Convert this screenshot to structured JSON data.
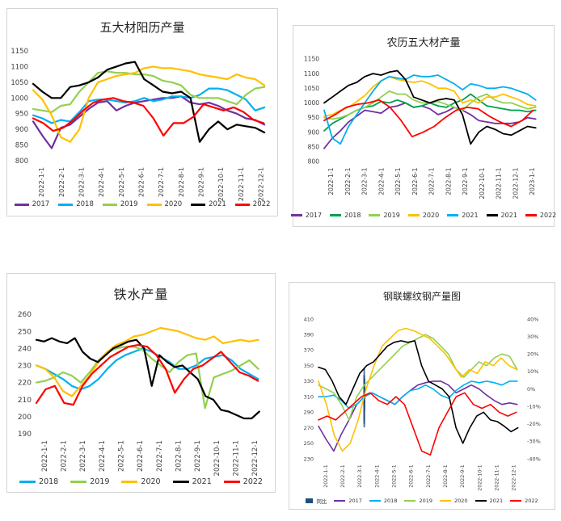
{
  "chart_data": [
    {
      "id": "p1",
      "type": "line",
      "title": "五大材阳历产量",
      "ylim": [
        800,
        1150
      ],
      "yticks": [
        800,
        850,
        900,
        950,
        1000,
        1050,
        1100,
        1150
      ],
      "xticks": [
        "2022-1-1",
        "2022-2-1",
        "2022-3-1",
        "2022-4-1",
        "2022-5-1",
        "2022-6-1",
        "2022-7-1",
        "2022-8-1",
        "2022-9-1",
        "2022-10-1",
        "2022-11-1",
        "2022-12-1"
      ],
      "series": [
        {
          "name": "2017",
          "color": "#7030a0",
          "values": [
            925,
            880,
            840,
            905,
            915,
            940,
            965,
            985,
            990,
            960,
            975,
            985,
            990,
            995,
            1000,
            1000,
            1005,
            985,
            980,
            985,
            975,
            960,
            950,
            935,
            930,
            915
          ]
        },
        {
          "name": "2018",
          "color": "#00b0f0",
          "values": [
            945,
            935,
            920,
            930,
            925,
            955,
            990,
            995,
            995,
            990,
            985,
            990,
            1000,
            990,
            995,
            1005,
            1005,
            1000,
            1010,
            1030,
            1030,
            1025,
            1010,
            995,
            960,
            970
          ]
        },
        {
          "name": "2019",
          "color": "#92d050",
          "values": [
            965,
            960,
            955,
            975,
            980,
            1020,
            1050,
            1080,
            1085,
            1080,
            1080,
            1075,
            1075,
            1070,
            1055,
            1050,
            1040,
            1010,
            1000,
            1000,
            1000,
            990,
            980,
            1010,
            1030,
            1035
          ]
        },
        {
          "name": "2020",
          "color": "#ffc000",
          "values": [
            1025,
            995,
            945,
            875,
            860,
            900,
            1000,
            1050,
            1060,
            1070,
            1075,
            1080,
            1095,
            1100,
            1095,
            1095,
            1090,
            1085,
            1075,
            1070,
            1065,
            1060,
            1075,
            1065,
            1060,
            1040
          ]
        },
        {
          "name": "2021",
          "color": "#000000",
          "values": [
            1045,
            1020,
            1000,
            1000,
            1035,
            1040,
            1050,
            1065,
            1090,
            1100,
            1110,
            1115,
            1060,
            1040,
            1020,
            1015,
            1020,
            1000,
            860,
            900,
            925,
            900,
            915,
            910,
            905,
            890
          ]
        },
        {
          "name": "2022",
          "color": "#ff0000",
          "values": [
            935,
            920,
            895,
            905,
            930,
            960,
            985,
            995,
            1000,
            990,
            985,
            975,
            935,
            880,
            920,
            920,
            940,
            980,
            970,
            960,
            970,
            955,
            930,
            920
          ]
        }
      ]
    },
    {
      "id": "p2",
      "type": "line",
      "title": "农历五大材产量",
      "ylim": [
        800,
        1150
      ],
      "yticks": [
        800,
        850,
        900,
        950,
        1000,
        1050,
        1100,
        1150
      ],
      "xticks": [
        "2022-1-1",
        "2022-2-1",
        "2022-3-1",
        "2022-4-1",
        "2022-5-1",
        "2022-6-1",
        "2022-7-1",
        "2022-8-1",
        "2022-9-1",
        "2022-10-1",
        "2022-11-1",
        "2022-12-1",
        "2023-1-1"
      ],
      "series": [
        {
          "name": "2017",
          "color": "#7030a0",
          "values": [
            845,
            880,
            905,
            935,
            955,
            975,
            970,
            965,
            985,
            990,
            1000,
            985,
            990,
            980,
            960,
            970,
            985,
            975,
            960,
            940,
            935,
            930,
            930,
            930,
            935,
            950,
            945
          ]
        },
        {
          "name": "2018",
          "color": "#00a050",
          "values": [
            905,
            930,
            945,
            960,
            975,
            985,
            990,
            1005,
            1000,
            1010,
            1000,
            985,
            990,
            1000,
            990,
            985,
            1000,
            1010,
            1030,
            1010,
            990,
            985,
            980,
            975,
            975,
            970,
            975
          ]
        },
        {
          "name": "2019",
          "color": "#92d050",
          "values": [
            950,
            945,
            950,
            960,
            975,
            985,
            1000,
            1020,
            1040,
            1030,
            1030,
            1010,
            1000,
            1000,
            1005,
            995,
            985,
            975,
            1000,
            1020,
            1030,
            1010,
            1000,
            1000,
            990,
            980,
            985
          ]
        },
        {
          "name": "2020",
          "color": "#ffc000",
          "values": [
            955,
            960,
            975,
            985,
            1005,
            1025,
            1055,
            1075,
            1090,
            1080,
            1075,
            1070,
            1075,
            1065,
            1050,
            1050,
            1040,
            1000,
            1010,
            1000,
            1020,
            1020,
            1030,
            1020,
            1010,
            995,
            990
          ]
        },
        {
          "name": "2021",
          "color": "#00b0f0",
          "values": [
            975,
            880,
            860,
            920,
            960,
            1000,
            1040,
            1075,
            1090,
            1085,
            1080,
            1095,
            1090,
            1090,
            1095,
            1080,
            1065,
            1045,
            1065,
            1060,
            1050,
            1050,
            1055,
            1050,
            1040,
            1030,
            1010
          ]
        },
        {
          "name": "2021",
          "color": "#000000",
          "values": [
            1000,
            1020,
            1040,
            1060,
            1070,
            1090,
            1100,
            1095,
            1105,
            1110,
            1080,
            1020,
            1010,
            1000,
            1010,
            1015,
            1010,
            960,
            860,
            900,
            920,
            910,
            895,
            890,
            905,
            920,
            915
          ]
        },
        {
          "name": "2022",
          "color": "#ff0000",
          "values": [
            940,
            960,
            985,
            995,
            1000,
            1010,
            985,
            940,
            885,
            900,
            920,
            950,
            975,
            985,
            980,
            955,
            935,
            920,
            940,
            975
          ]
        }
      ]
    },
    {
      "id": "p3",
      "type": "line",
      "title": "铁水产量",
      "ylim": [
        190,
        260
      ],
      "yticks": [
        190,
        200,
        210,
        220,
        230,
        240,
        250,
        260
      ],
      "xticks": [
        "2022-1-1",
        "2022-2-1",
        "2022-3-1",
        "2022-4-1",
        "2022-5-1",
        "2022-6-1",
        "2022-7-1",
        "2022-8-1",
        "2022-9-1",
        "2022-10-1",
        "2022-11-1",
        "2022-12-1"
      ],
      "series": [
        {
          "name": "2018",
          "color": "#00b0f0",
          "values": [
            230,
            228,
            225,
            222,
            218,
            216,
            218,
            222,
            228,
            233,
            236,
            238,
            240,
            238,
            235,
            232,
            228,
            228,
            230,
            234,
            235,
            236,
            233,
            228,
            225,
            222
          ]
        },
        {
          "name": "2019",
          "color": "#92d050",
          "values": [
            220,
            221,
            223,
            226,
            224,
            220,
            226,
            233,
            238,
            240,
            241,
            241,
            239,
            234,
            230,
            226,
            232,
            236,
            237,
            205,
            223,
            225,
            227,
            230,
            233,
            228
          ]
        },
        {
          "name": "2020",
          "color": "#ffc000",
          "values": [
            230,
            228,
            223,
            215,
            212,
            218,
            224,
            232,
            238,
            242,
            244,
            247,
            248,
            250,
            252,
            251,
            250,
            248,
            246,
            245,
            247,
            243,
            244,
            245,
            244,
            245
          ]
        },
        {
          "name": "2021",
          "color": "#000000",
          "values": [
            245,
            244,
            246,
            244,
            243,
            246,
            238,
            234,
            232,
            236,
            240,
            242,
            244,
            245,
            240,
            218,
            236,
            232,
            229,
            230,
            226,
            222,
            212,
            210,
            204,
            203,
            201,
            199,
            199,
            203
          ]
        },
        {
          "name": "2022",
          "color": "#ff0000",
          "values": [
            208,
            216,
            218,
            208,
            207,
            218,
            225,
            230,
            235,
            238,
            241,
            242,
            241,
            236,
            228,
            214,
            222,
            228,
            230,
            234,
            238,
            232,
            226,
            224,
            221
          ]
        }
      ]
    },
    {
      "id": "p4",
      "type": "line",
      "title": "钢联螺纹钢产量图",
      "ylim": [
        230,
        410
      ],
      "yticks": [
        230,
        250,
        270,
        290,
        310,
        330,
        350,
        370,
        390,
        410
      ],
      "y2lim": [
        -0.4,
        0.4
      ],
      "y2ticks": [
        "40%",
        "30%",
        "20%",
        "10%",
        "0%",
        "-10%",
        "-20%",
        "-30%",
        "-40%"
      ],
      "xticks": [
        "2022-1-1",
        "2022-2-1",
        "2022-3-1",
        "2022-4-1",
        "2022-5-1",
        "2022-6-1",
        "2022-7-1",
        "2022-8-1",
        "2022-9-1",
        "2022-10-1",
        "2022-11-1",
        "2022-12-1"
      ],
      "bars": {
        "name": "同比",
        "color": "#1f4e79",
        "values": [
          -0.03,
          -0.05,
          -0.08,
          -0.1,
          -0.07,
          0.04,
          0.06,
          0.05,
          0.03,
          -0.02,
          -0.06,
          -0.1,
          -0.12,
          -0.1,
          -0.08,
          -0.1,
          -0.12,
          -0.13,
          -0.2,
          -0.22,
          -0.18,
          -0.12,
          -0.08,
          -0.05,
          0.02,
          0.05,
          0.12,
          0.08,
          0.07,
          0.06,
          0.06,
          0.06,
          0.05,
          0.03
        ]
      },
      "series": [
        {
          "name": "2017",
          "color": "#7030a0",
          "values": [
            272,
            255,
            240,
            262,
            280,
            300,
            310,
            315,
            310,
            305,
            300,
            310,
            318,
            325,
            328,
            330,
            330,
            325,
            315,
            320,
            325,
            320,
            312,
            305,
            300,
            302,
            300
          ]
        },
        {
          "name": "2018",
          "color": "#00b0f0",
          "values": [
            310,
            310,
            312,
            305,
            295,
            300,
            310,
            315,
            310,
            305,
            300,
            310,
            318,
            320,
            325,
            320,
            312,
            308,
            318,
            325,
            330,
            328,
            330,
            328,
            325,
            330,
            330
          ]
        },
        {
          "name": "2019",
          "color": "#92d050",
          "values": [
            325,
            320,
            315,
            300,
            280,
            310,
            325,
            335,
            345,
            355,
            365,
            375,
            380,
            385,
            390,
            385,
            375,
            365,
            345,
            335,
            345,
            355,
            350,
            360,
            365,
            362,
            345
          ]
        },
        {
          "name": "2020",
          "color": "#ffc000",
          "values": [
            330,
            300,
            260,
            240,
            250,
            280,
            320,
            350,
            375,
            385,
            395,
            398,
            395,
            390,
            385,
            375,
            365,
            350,
            335,
            345,
            340,
            355,
            350,
            360,
            350,
            345
          ]
        },
        {
          "name": "2021",
          "color": "#000000",
          "values": [
            348,
            345,
            330,
            310,
            300,
            320,
            340,
            350,
            355,
            365,
            375,
            380,
            382,
            380,
            382,
            350,
            330,
            325,
            320,
            310,
            270,
            250,
            270,
            285,
            290,
            280,
            278,
            272,
            265,
            270
          ]
        },
        {
          "name": "2022",
          "color": "#ff0000",
          "values": [
            280,
            285,
            280,
            290,
            300,
            310,
            315,
            305,
            300,
            310,
            300,
            270,
            240,
            235,
            270,
            290,
            310,
            315,
            300,
            295,
            300,
            290,
            285,
            290
          ]
        }
      ]
    }
  ]
}
